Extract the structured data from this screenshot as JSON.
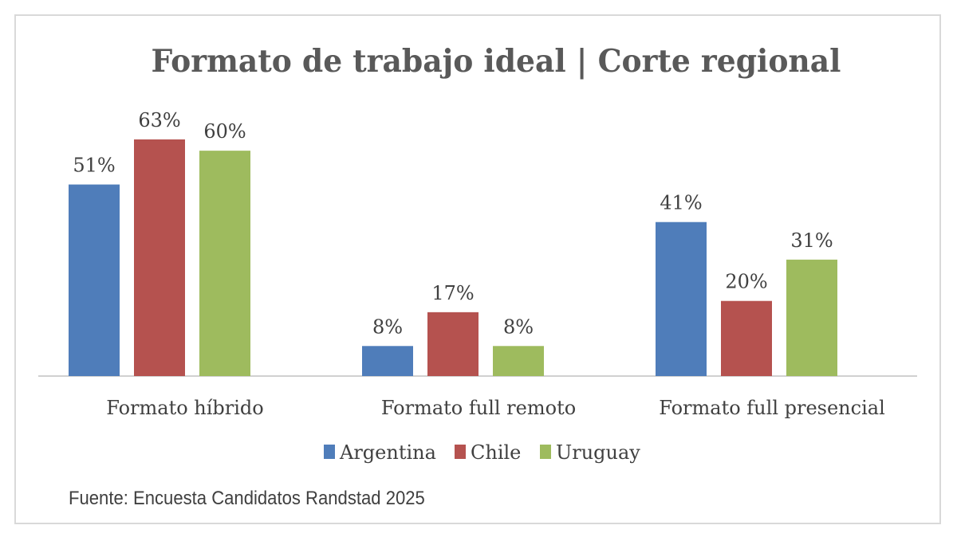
{
  "chart_data": {
    "type": "bar",
    "title": "Formato de trabajo ideal | Corte regional",
    "categories": [
      "Formato híbrido",
      "Formato full remoto",
      "Formato full presencial"
    ],
    "series": [
      {
        "name": "Argentina",
        "color": "#4F7DBA",
        "values": [
          51,
          8,
          41
        ],
        "labels": [
          "51%",
          "8%",
          "41%"
        ]
      },
      {
        "name": "Chile",
        "color": "#B5524F",
        "values": [
          63,
          17,
          20
        ],
        "labels": [
          "63%",
          "17%",
          "20%"
        ]
      },
      {
        "name": "Uruguay",
        "color": "#9EBB5E",
        "values": [
          60,
          8,
          31
        ],
        "labels": [
          "60%",
          "8%",
          "31%"
        ]
      }
    ],
    "unit": "%",
    "ylim": [
      0,
      63
    ],
    "grid": false,
    "legend": "bottom",
    "source": "Fuente: Encuesta Candidatos Randstad 2025"
  }
}
